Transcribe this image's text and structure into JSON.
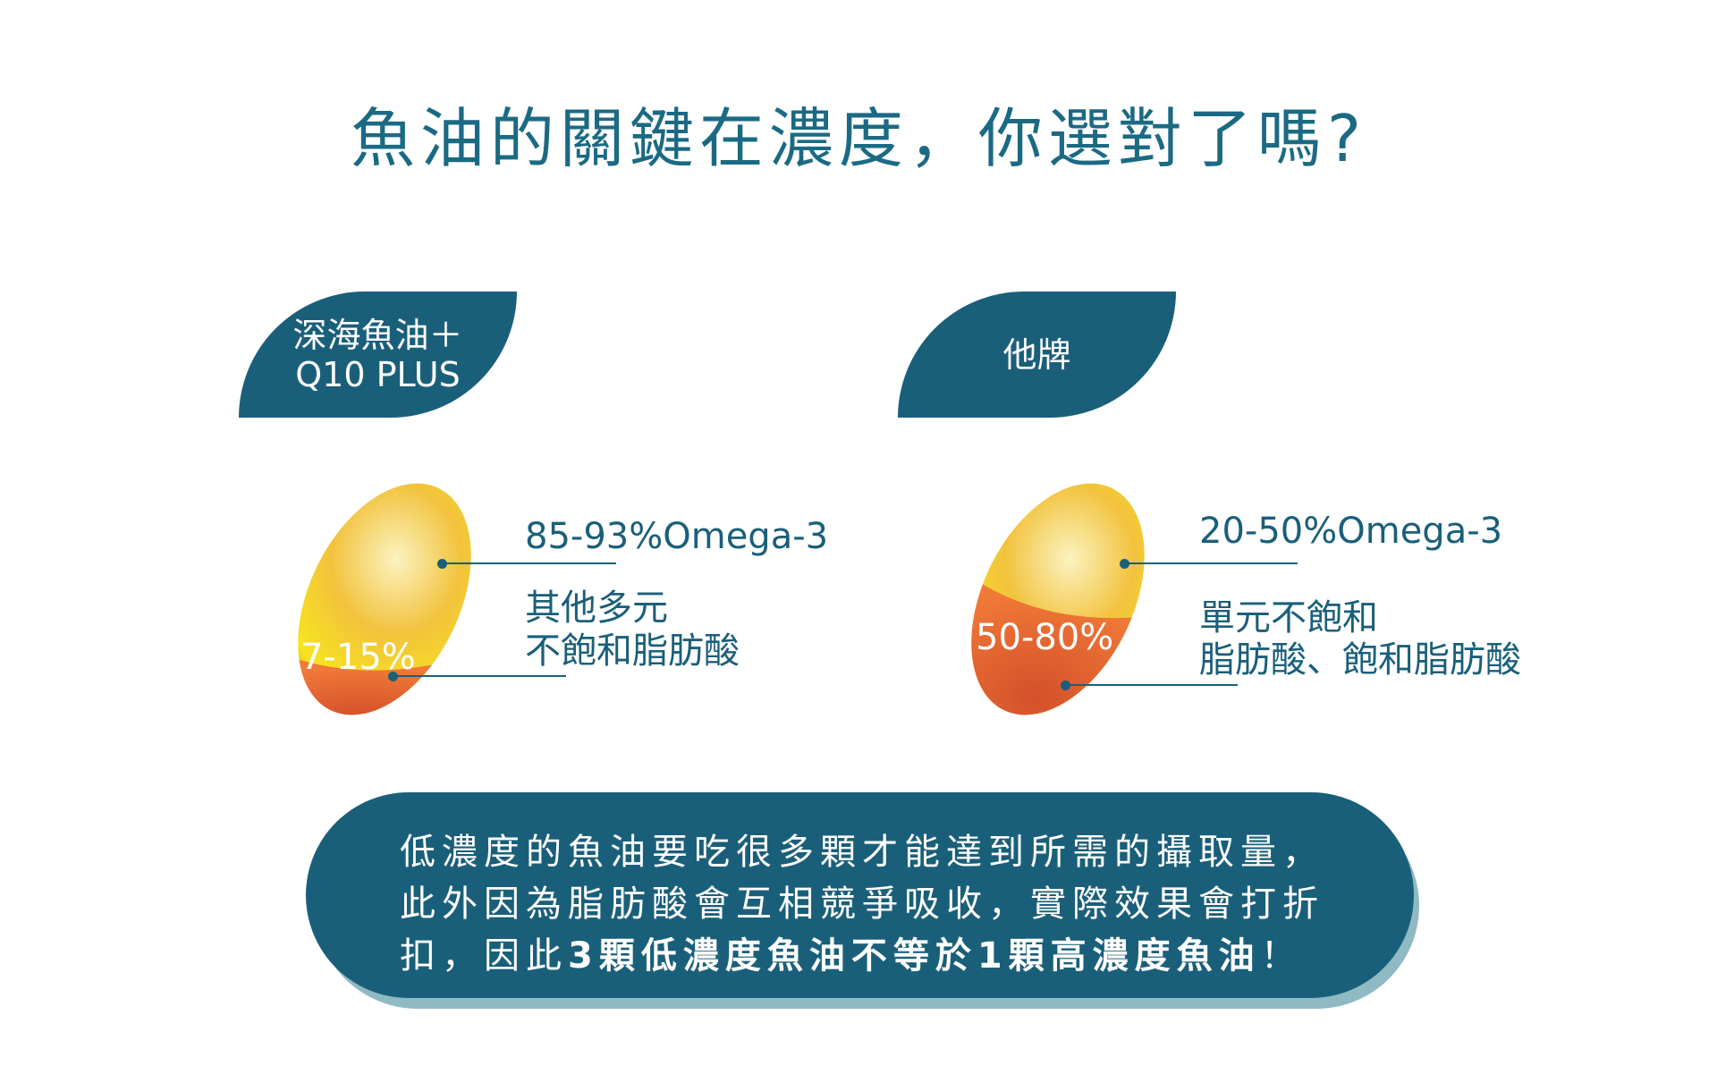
{
  "title": "魚油的關鍵在濃度，你選對了嗎?",
  "left": {
    "tag_line1": "深海魚油＋",
    "tag_line2": "Q10 PLUS",
    "omega": "85-93%Omega-3",
    "other_line1": "其他多元",
    "other_line2": "不飽和脂肪酸",
    "pct": "7-15%",
    "omega_fraction": 0.89
  },
  "right": {
    "tag_line1": "他牌",
    "omega": "20-50%Omega-3",
    "other_line1": "單元不飽和",
    "other_line2": "脂肪酸、飽和脂肪酸",
    "pct": "50-80%",
    "omega_fraction": 0.35
  },
  "note": {
    "line1": "低濃度的魚油要吃很多顆才能達到所需的攝取量，",
    "line2": "此外因為脂肪酸會互相競爭吸收，實際效果會打折",
    "line3_plain": "扣，因此",
    "line3_bold": "3顆低濃度魚油不等於1顆高濃度魚油",
    "line3_end": "！"
  },
  "colors": {
    "primary": "#1a5f7a",
    "title": "#1b6a84",
    "shadow": "#8fbac4",
    "yellow": "#f3c63a",
    "orange": "#ee6a2c"
  }
}
